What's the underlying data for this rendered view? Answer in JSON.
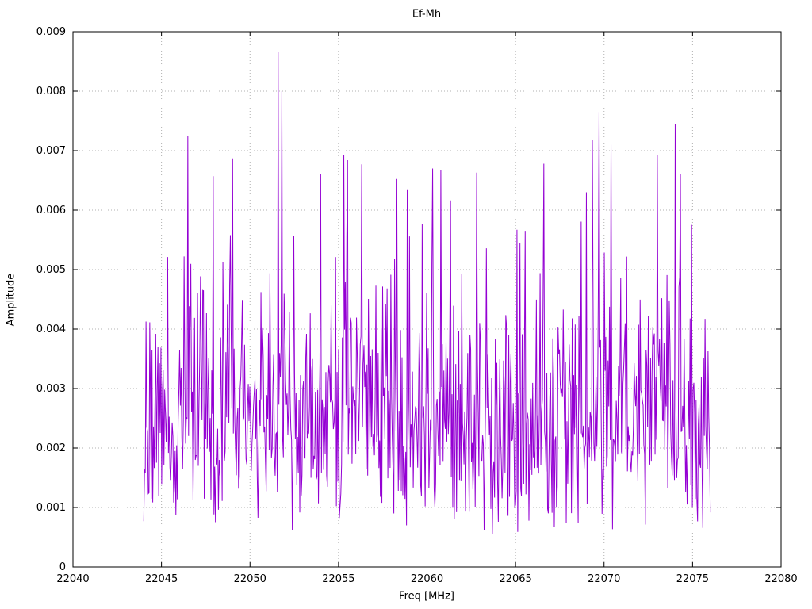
{
  "chart_data": {
    "type": "line",
    "title": "Ef-Mh",
    "xlabel": "Freq [MHz]",
    "ylabel": "Amplitude",
    "xlim": [
      22040,
      22080
    ],
    "ylim": [
      0,
      0.009
    ],
    "xticks": [
      22040,
      22045,
      22050,
      22055,
      22060,
      22065,
      22070,
      22075,
      22080
    ],
    "xtick_labels": [
      "22040",
      "22045",
      "22050",
      "22055",
      "22060",
      "22065",
      "22070",
      "22075",
      "22080"
    ],
    "yticks": [
      0,
      0.001,
      0.002,
      0.003,
      0.004,
      0.005,
      0.006,
      0.007,
      0.008,
      0.009
    ],
    "ytick_labels": [
      "0",
      "0.001",
      "0.002",
      "0.003",
      "0.004",
      "0.005",
      "0.006",
      "0.007",
      "0.008",
      "0.009"
    ],
    "grid": true,
    "legend": "none",
    "line_color": "#9400D3",
    "grid_color": "#b0b0b0",
    "border_color": "#000000",
    "series": {
      "name": "Ef-Mh",
      "description": "Dense noisy amplitude spectrum spanning 22044-22076 MHz; bulk of values 0.0005-0.006 with sharp spikes",
      "x_start": 22044.0,
      "x_end": 22076.0,
      "n_points": 760,
      "seed": 20471,
      "noise_model": "rayleigh",
      "noise_base": 0.0005,
      "noise_sigma": 0.0017,
      "clip_max": 0.0076,
      "peaks": [
        {
          "x": 22046.5,
          "y": 0.00724
        },
        {
          "x": 22047.9,
          "y": 0.00657
        },
        {
          "x": 22049.0,
          "y": 0.00687
        },
        {
          "x": 22051.6,
          "y": 0.00866
        },
        {
          "x": 22051.8,
          "y": 0.008
        },
        {
          "x": 22054.0,
          "y": 0.0066
        },
        {
          "x": 22055.3,
          "y": 0.00693
        },
        {
          "x": 22056.3,
          "y": 0.00677
        },
        {
          "x": 22055.5,
          "y": 0.00684
        },
        {
          "x": 22058.9,
          "y": 0.00635
        },
        {
          "x": 22060.3,
          "y": 0.0067
        },
        {
          "x": 22060.8,
          "y": 0.00668
        },
        {
          "x": 22062.8,
          "y": 0.00663
        },
        {
          "x": 22065.1,
          "y": 0.00567
        },
        {
          "x": 22066.6,
          "y": 0.00678
        },
        {
          "x": 22069.0,
          "y": 0.0063
        },
        {
          "x": 22069.7,
          "y": 0.00765
        },
        {
          "x": 22070.4,
          "y": 0.0071
        },
        {
          "x": 22073.0,
          "y": 0.00693
        },
        {
          "x": 22074.0,
          "y": 0.00745
        },
        {
          "x": 22074.3,
          "y": 0.0066
        }
      ]
    }
  }
}
